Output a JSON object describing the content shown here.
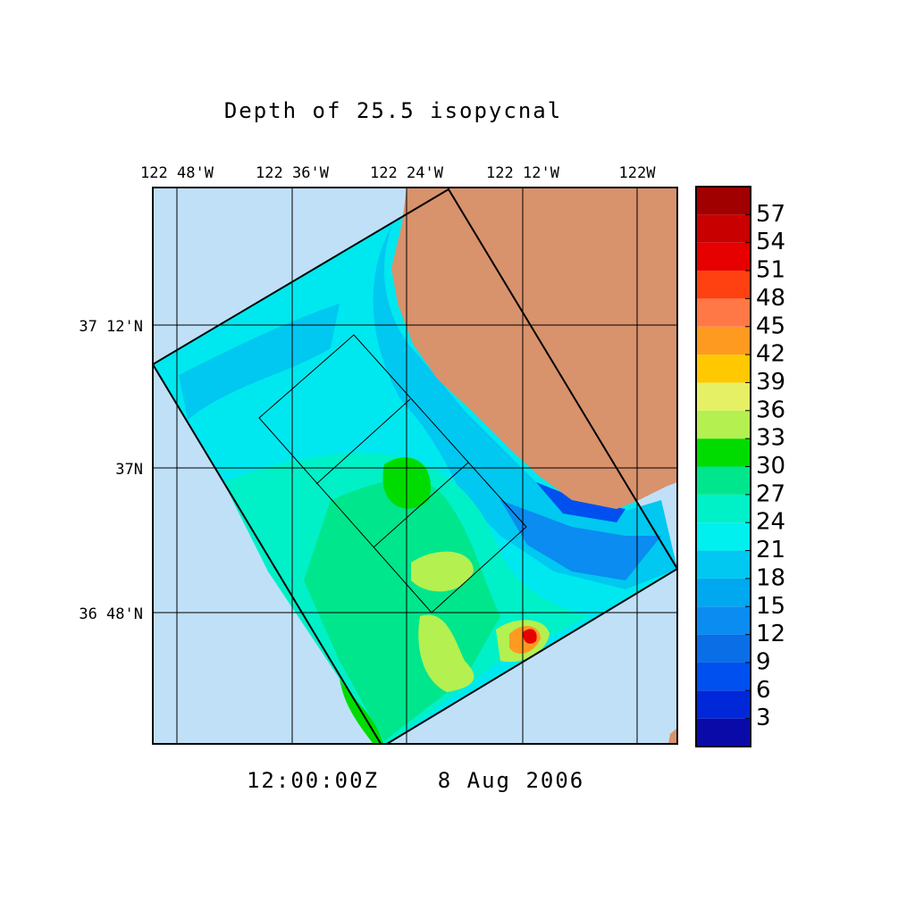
{
  "title": "Depth of 25.5 isopycnal",
  "time": "12:00:00Z",
  "date": "8 Aug 2006",
  "lon_labels": [
    "122 48'W",
    "122 36'W",
    "122 24'W",
    "122 12'W",
    "122W"
  ],
  "lat_labels": [
    "37 12'N",
    "37N",
    "36 48'N"
  ],
  "colorbar": {
    "levels": [
      3,
      6,
      9,
      12,
      15,
      18,
      21,
      24,
      27,
      30,
      33,
      36,
      39,
      42,
      45,
      48,
      51,
      54,
      57
    ],
    "colors": [
      "#0a0aa8",
      "#0028d8",
      "#0050f0",
      "#0a6ee6",
      "#0a8cf0",
      "#00a8f0",
      "#00c8f0",
      "#00f0f0",
      "#00f0c8",
      "#00e68c",
      "#00dc00",
      "#b4f050",
      "#e6f064",
      "#ffc800",
      "#ff9a20",
      "#ff7846",
      "#ff4010",
      "#e60000",
      "#c80000",
      "#a00000"
    ]
  }
}
